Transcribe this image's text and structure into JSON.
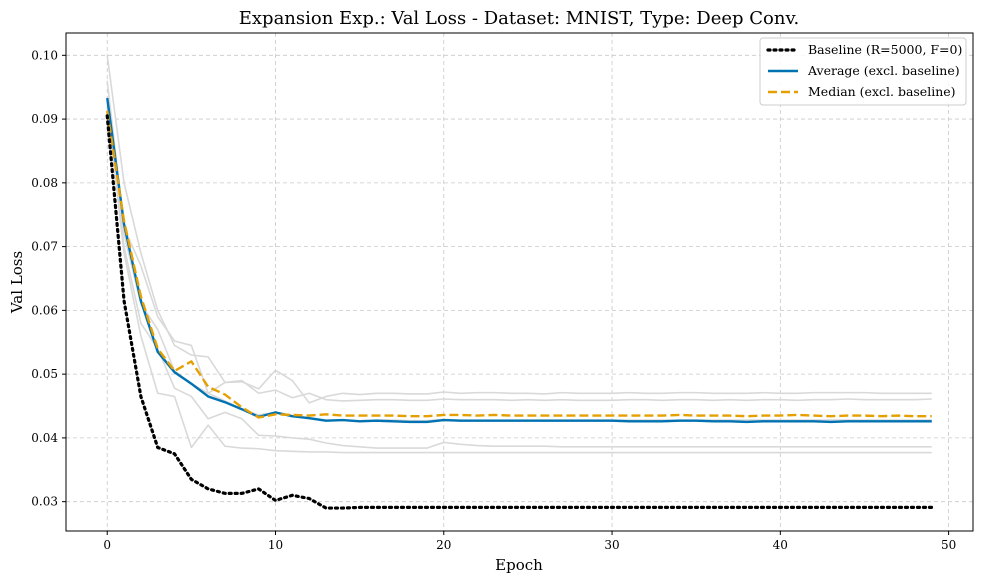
{
  "chart_data": {
    "type": "line",
    "title": "Expansion Exp.: Val Loss - Dataset: MNIST, Type: Deep Conv.",
    "xlabel": "Epoch",
    "ylabel": "Val Loss",
    "xlim": [
      -2.45,
      51.45
    ],
    "ylim": [
      0.0254,
      0.1035
    ],
    "xticks": [
      0,
      10,
      20,
      30,
      40,
      50
    ],
    "yticks": [
      0.03,
      0.04,
      0.05,
      0.06,
      0.07,
      0.08,
      0.09,
      0.1
    ],
    "ytick_labels": [
      "0.03",
      "0.04",
      "0.05",
      "0.06",
      "0.07",
      "0.08",
      "0.09",
      "0.10"
    ],
    "grid": true,
    "legend_position": "top-right",
    "colors": {
      "baseline": "#000000",
      "average": "#0072b2",
      "median": "#e69f00",
      "runs": "#d9d9d9"
    },
    "series": [
      {
        "name": "Baseline (R=5000, F=0)",
        "style": "dotted",
        "role": "baseline",
        "values": [
          0.0905,
          0.0615,
          0.0465,
          0.0385,
          0.0375,
          0.0335,
          0.032,
          0.0313,
          0.0313,
          0.032,
          0.0302,
          0.031,
          0.0305,
          0.029,
          0.029,
          0.0291,
          0.0291,
          0.0291,
          0.0291,
          0.0291,
          0.0291,
          0.0291,
          0.0291,
          0.0291,
          0.0291,
          0.0291,
          0.0291,
          0.0291,
          0.0291,
          0.0291,
          0.0291,
          0.0291,
          0.0291,
          0.0291,
          0.0291,
          0.0291,
          0.0291,
          0.0291,
          0.0291,
          0.0291,
          0.0291,
          0.0291,
          0.0291,
          0.0291,
          0.0291,
          0.0291,
          0.0291,
          0.0291,
          0.0291,
          0.0291
        ]
      },
      {
        "name": "Average (excl. baseline)",
        "style": "solid",
        "role": "average",
        "values": [
          0.0933,
          0.0735,
          0.0615,
          0.0535,
          0.0503,
          0.0485,
          0.0465,
          0.0456,
          0.0445,
          0.0433,
          0.044,
          0.0434,
          0.0431,
          0.0427,
          0.0428,
          0.0426,
          0.0427,
          0.0426,
          0.0425,
          0.0425,
          0.0428,
          0.0427,
          0.0427,
          0.0427,
          0.0427,
          0.0427,
          0.0427,
          0.0427,
          0.0427,
          0.0427,
          0.0427,
          0.0426,
          0.0426,
          0.0426,
          0.0427,
          0.0427,
          0.0426,
          0.0426,
          0.0425,
          0.0426,
          0.0426,
          0.0426,
          0.0426,
          0.0425,
          0.0426,
          0.0426,
          0.0426,
          0.0426,
          0.0426,
          0.0426
        ]
      },
      {
        "name": "Median (excl. baseline)",
        "style": "dashed",
        "role": "median",
        "values": [
          0.0913,
          0.074,
          0.0622,
          0.054,
          0.0505,
          0.052,
          0.048,
          0.0468,
          0.0448,
          0.0432,
          0.0437,
          0.0436,
          0.0435,
          0.0437,
          0.0435,
          0.0435,
          0.0435,
          0.0435,
          0.0434,
          0.0434,
          0.0436,
          0.0436,
          0.0435,
          0.0436,
          0.0435,
          0.0435,
          0.0435,
          0.0435,
          0.0435,
          0.0435,
          0.0435,
          0.0435,
          0.0435,
          0.0435,
          0.0436,
          0.0435,
          0.0435,
          0.0435,
          0.0434,
          0.0435,
          0.0435,
          0.0436,
          0.0435,
          0.0434,
          0.0435,
          0.0435,
          0.0434,
          0.0435,
          0.0434,
          0.0434
        ]
      },
      {
        "role": "run",
        "values": [
          0.1,
          0.08,
          0.069,
          0.06,
          0.0545,
          0.053,
          0.0527,
          0.0487,
          0.0488,
          0.0477,
          0.0506,
          0.049,
          0.0455,
          0.0465,
          0.047,
          0.0468,
          0.047,
          0.047,
          0.0469,
          0.0469,
          0.0472,
          0.047,
          0.0471,
          0.0471,
          0.047,
          0.047,
          0.0469,
          0.0471,
          0.047,
          0.047,
          0.047,
          0.0471,
          0.047,
          0.047,
          0.0471,
          0.0471,
          0.047,
          0.047,
          0.047,
          0.0471,
          0.047,
          0.047,
          0.0471,
          0.0471,
          0.0471,
          0.0471,
          0.047,
          0.047,
          0.047,
          0.047
        ]
      },
      {
        "role": "run",
        "values": [
          0.096,
          0.073,
          0.067,
          0.059,
          0.0552,
          0.0545,
          0.047,
          0.0487,
          0.049,
          0.047,
          0.0475,
          0.0463,
          0.047,
          0.046,
          0.0458,
          0.0459,
          0.046,
          0.046,
          0.0459,
          0.0459,
          0.0461,
          0.046,
          0.046,
          0.046,
          0.0459,
          0.046,
          0.0459,
          0.046,
          0.0459,
          0.0459,
          0.0459,
          0.046,
          0.046,
          0.0459,
          0.046,
          0.046,
          0.0459,
          0.046,
          0.0459,
          0.046,
          0.046,
          0.0459,
          0.046,
          0.046,
          0.0461,
          0.046,
          0.046,
          0.046,
          0.046,
          0.0461
        ]
      },
      {
        "role": "run",
        "values": [
          0.093,
          0.07,
          0.058,
          0.054,
          0.0478,
          0.0465,
          0.043,
          0.044,
          0.043,
          0.0404,
          0.0403,
          0.04,
          0.0398,
          0.0392,
          0.0388,
          0.0386,
          0.0384,
          0.0384,
          0.0384,
          0.0384,
          0.0393,
          0.039,
          0.0388,
          0.0387,
          0.0387,
          0.0387,
          0.0387,
          0.0386,
          0.0386,
          0.0386,
          0.0386,
          0.0386,
          0.0386,
          0.0386,
          0.0386,
          0.0386,
          0.0386,
          0.0386,
          0.0386,
          0.0386,
          0.0386,
          0.0386,
          0.0386,
          0.0386,
          0.0386,
          0.0386,
          0.0386,
          0.0386,
          0.0386,
          0.0386
        ]
      },
      {
        "role": "run",
        "values": [
          0.092,
          0.069,
          0.056,
          0.047,
          0.0465,
          0.0385,
          0.042,
          0.0387,
          0.0384,
          0.0383,
          0.038,
          0.0379,
          0.0378,
          0.0378,
          0.0377,
          0.0377,
          0.0377,
          0.0377,
          0.0377,
          0.0377,
          0.0377,
          0.0377,
          0.0377,
          0.0377,
          0.0377,
          0.0377,
          0.0377,
          0.0377,
          0.0377,
          0.0377,
          0.0377,
          0.0377,
          0.0377,
          0.0377,
          0.0377,
          0.0377,
          0.0377,
          0.0377,
          0.0377,
          0.0377,
          0.0377,
          0.0377,
          0.0377,
          0.0377,
          0.0377,
          0.0377,
          0.0377,
          0.0377,
          0.0377,
          0.0377
        ]
      },
      {
        "role": "run",
        "values": [
          0.0935,
          0.072,
          0.061,
          0.057,
          0.0505,
          0.0485,
          0.047,
          0.0458,
          0.0445,
          0.0436,
          0.044,
          0.0433,
          0.0432,
          0.0428,
          0.0428,
          0.0427,
          0.0428,
          0.0428,
          0.0427,
          0.0427,
          0.0429,
          0.0428,
          0.0428,
          0.0428,
          0.0428,
          0.0428,
          0.0428,
          0.0428,
          0.0428,
          0.0428,
          0.0428,
          0.0428,
          0.0428,
          0.0428,
          0.0428,
          0.0428,
          0.0428,
          0.0428,
          0.0428,
          0.0428,
          0.0428,
          0.0428,
          0.0428,
          0.0428,
          0.0428,
          0.0428,
          0.0428,
          0.0428,
          0.0428,
          0.0428
        ]
      }
    ]
  }
}
